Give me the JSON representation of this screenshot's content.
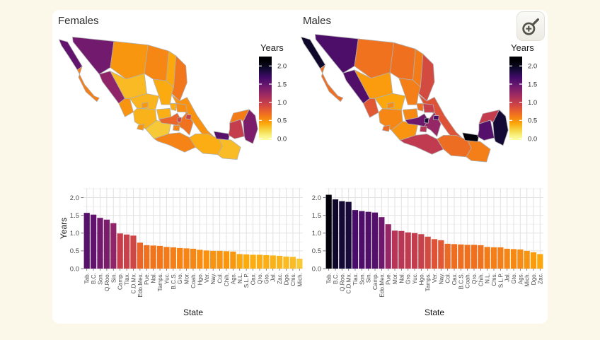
{
  "page": {
    "background": "#FBF8EA",
    "panel_background": "#FFFFFF"
  },
  "controls": {
    "zoom_button": {
      "icon": "magnifier-plus-icon"
    }
  },
  "colormap": {
    "name": "inferno-reversed",
    "dark_is_high": true,
    "value_max": 2.1,
    "anchors": [
      "#000004",
      "#160B39",
      "#420A68",
      "#6A176E",
      "#932667",
      "#BB3754",
      "#DD513A",
      "#F37819",
      "#FCA50A",
      "#F5DB4C",
      "#FCFFA4"
    ]
  },
  "chart_data": [
    {
      "type": "choropleth",
      "title": "Females",
      "region": "Mexico states",
      "legend_title": "Years",
      "legend_tick_labels": [
        "2.0",
        "1.5",
        "1.0",
        "0.5",
        "0.0"
      ],
      "legend_ticks": [
        2.0,
        1.5,
        1.0,
        0.5,
        0.0
      ],
      "values": {
        "B.C.": 1.52,
        "B.C.S.": 0.6,
        "Son.": 1.43,
        "Chih.": 0.49,
        "Coah.": 0.56,
        "N.L.": 0.41,
        "Tamps.": 0.64,
        "Sin.": 1.28,
        "Dgo.": 0.34,
        "Zac.": 0.36,
        "S.L.P.": 0.4,
        "Nay.": 0.5,
        "Jal.": 0.37,
        "Ags.": 0.48,
        "Gto.": 0.38,
        "Qro.": 0.39,
        "Hgo.": 0.53,
        "Ver.": 0.51,
        "Mich.": 0.28,
        "Col.": 0.5,
        "Edo.Mex.": 0.73,
        "C.D.Mx.": 0.93,
        "Tlax.": 0.96,
        "Mor.": 0.57,
        "Pue.": 0.66,
        "Gro.": 0.58,
        "Oax.": 0.39,
        "Chis.": 0.33,
        "Tab.": 1.57,
        "Camp.": 0.99,
        "Yuc.": 0.61,
        "Q.Roo.": 1.38
      }
    },
    {
      "type": "choropleth",
      "title": "Males",
      "region": "Mexico states",
      "legend_title": "Years",
      "legend_tick_labels": [
        "2.0",
        "1.5",
        "1.0",
        "0.5",
        "0.0"
      ],
      "legend_ticks": [
        2.0,
        1.5,
        1.0,
        0.5,
        0.0
      ],
      "values": {
        "B.C.": 1.95,
        "B.C.S.": 0.68,
        "Son.": 1.62,
        "Chih.": 0.66,
        "Coah.": 0.67,
        "N.L.": 0.61,
        "Tamps.": 0.9,
        "Sin.": 1.6,
        "Dgo.": 0.46,
        "Zac.": 0.41,
        "S.L.P.": 0.6,
        "Nay.": 0.8,
        "Jal.": 0.56,
        "Ags.": 0.54,
        "Gto.": 0.55,
        "Qro.": 0.67,
        "Hgo.": 0.97,
        "Ver.": 0.83,
        "Mich.": 0.5,
        "Col.": 0.7,
        "Edo.Mex.": 1.45,
        "C.D.Mx.": 1.88,
        "Tlax.": 1.65,
        "Mor.": 1.07,
        "Pue.": 1.25,
        "Gro.": 1.02,
        "Oax.": 0.69,
        "Chis.": 0.6,
        "Tab.": 2.08,
        "Camp.": 1.58,
        "Yuc.": 1.0,
        "Q.Roo.": 1.9
      }
    },
    {
      "type": "bar",
      "title": "Females",
      "xlabel": "State",
      "ylabel": "Years",
      "ylim": [
        0,
        2.27
      ],
      "y_tick_labels": [
        "0.0",
        "0.5",
        "1.0",
        "1.5",
        "2.0"
      ],
      "y_ticks": [
        0.0,
        0.5,
        1.0,
        1.5,
        2.0
      ],
      "categories": [
        "Tab.",
        "B.C.",
        "Son.",
        "Q.Roo.",
        "Sin.",
        "Camp.",
        "Tlax.",
        "C.D.Mx.",
        "Edo.Mex.",
        "Pue.",
        "Nal.",
        "Tamps.",
        "Yuc.",
        "B.C.S.",
        "Gro.",
        "Mor.",
        "Coah.",
        "Hgo.",
        "Ver.",
        "Nay.",
        "Col.",
        "Chih.",
        "Ags.",
        "N.L.",
        "S.L.P.",
        "Oax.",
        "Qro.",
        "Gto.",
        "Jal.",
        "Zac.",
        "Dgo.",
        "Chis.",
        "Mich."
      ],
      "values": [
        1.57,
        1.52,
        1.43,
        1.38,
        1.28,
        0.99,
        0.96,
        0.93,
        0.73,
        0.66,
        0.65,
        0.64,
        0.61,
        0.6,
        0.58,
        0.57,
        0.56,
        0.53,
        0.51,
        0.5,
        0.5,
        0.49,
        0.48,
        0.41,
        0.4,
        0.39,
        0.39,
        0.38,
        0.37,
        0.36,
        0.34,
        0.33,
        0.28
      ]
    },
    {
      "type": "bar",
      "title": "Males",
      "xlabel": "State",
      "ylabel": "",
      "ylim": [
        0,
        2.27
      ],
      "y_tick_labels": [
        "0.0",
        "0.5",
        "1.0",
        "1.5",
        "2.0"
      ],
      "y_ticks": [
        0.0,
        0.5,
        1.0,
        1.5,
        2.0
      ],
      "categories": [
        "Tab.",
        "B.C.",
        "Q.Roo.",
        "C.D.Mx.",
        "Tlax.",
        "Son.",
        "Sin.",
        "Camp.",
        "Edo.Mex.",
        "Pue.",
        "Mor.",
        "Nal.",
        "Gro.",
        "Yuc.",
        "Hgo.",
        "Tamps.",
        "Ver.",
        "Nay.",
        "Col.",
        "Oax.",
        "B.C.S.",
        "Coah.",
        "Qro.",
        "Chih.",
        "N.L.",
        "Chis.",
        "S.L.P.",
        "Jal.",
        "Gto.",
        "Ags.",
        "Mich.",
        "Dgo.",
        "Zac."
      ],
      "values": [
        2.08,
        1.95,
        1.9,
        1.88,
        1.65,
        1.62,
        1.6,
        1.58,
        1.45,
        1.25,
        1.07,
        1.06,
        1.02,
        1.0,
        0.97,
        0.9,
        0.83,
        0.8,
        0.7,
        0.69,
        0.68,
        0.67,
        0.67,
        0.66,
        0.61,
        0.6,
        0.6,
        0.56,
        0.55,
        0.54,
        0.5,
        0.46,
        0.41
      ]
    }
  ]
}
